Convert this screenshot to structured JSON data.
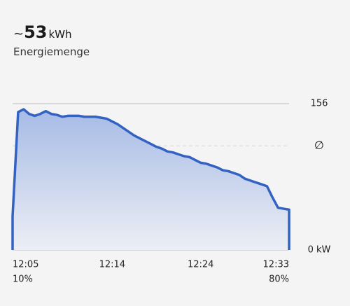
{
  "header": {
    "prefix": "~",
    "value": 53,
    "unit": "kWh",
    "subtitle": "Energiemenge"
  },
  "chart_data": {
    "type": "line",
    "color": "#3462c2",
    "values": [
      36,
      147,
      150,
      145,
      143,
      145,
      148,
      145,
      144,
      142,
      143,
      143,
      143,
      142,
      142,
      142,
      141,
      140,
      137,
      134,
      130,
      126,
      122,
      119,
      116,
      113,
      110,
      108,
      105,
      104,
      102,
      100,
      99,
      96,
      93,
      92,
      90,
      88,
      85,
      84,
      82,
      80,
      76,
      74,
      72,
      70,
      68,
      56,
      45,
      44,
      43
    ],
    "xlim": [
      0,
      50
    ],
    "xticks": [
      {
        "value": 0,
        "label": "12:05"
      },
      {
        "value": 17,
        "label": "12:14"
      },
      {
        "value": 33,
        "label": "12:24"
      },
      {
        "value": 50,
        "label": "12:33"
      }
    ],
    "soc_labels": [
      "10%",
      "80%"
    ],
    "ylim": [
      0,
      156
    ],
    "yticks": [
      {
        "value": 0,
        "label": "0 kW"
      },
      156
    ],
    "average": {
      "value": 111,
      "label": "∅"
    }
  }
}
